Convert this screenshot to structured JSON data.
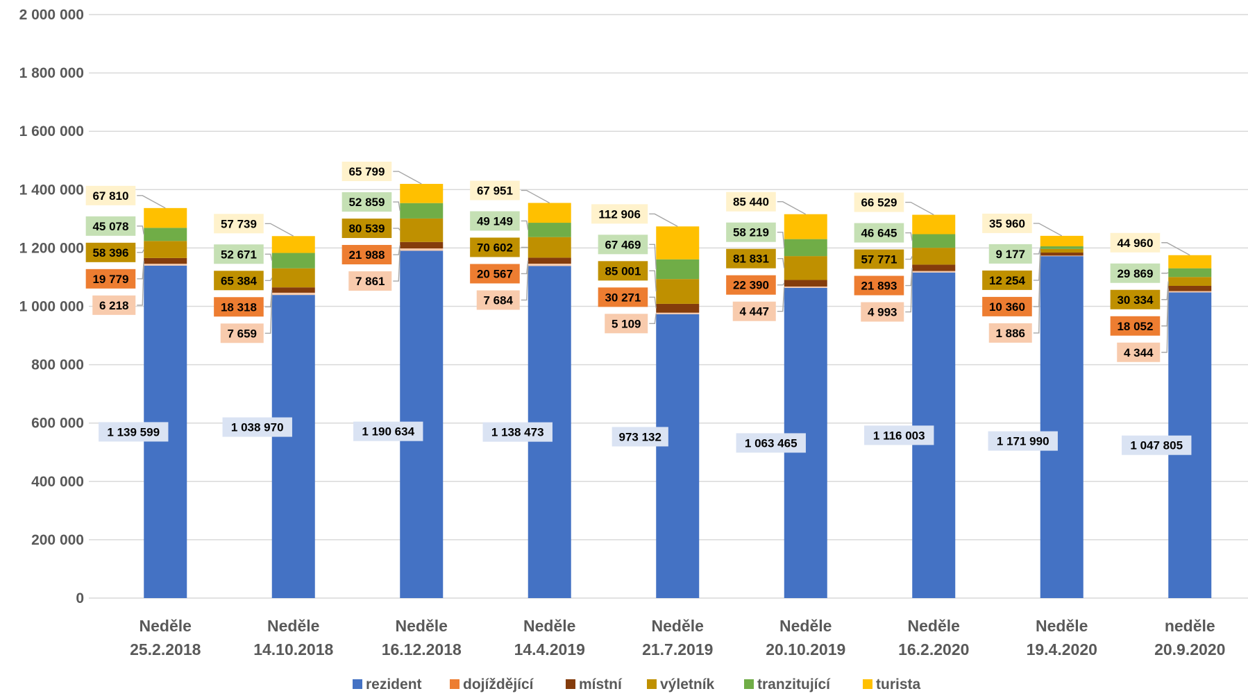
{
  "chart_data": {
    "type": "bar",
    "stacked": true,
    "title": "",
    "xlabel": "",
    "ylabel": "",
    "ylim": [
      0,
      2000000
    ],
    "yticks": [
      0,
      200000,
      400000,
      600000,
      800000,
      1000000,
      1200000,
      1400000,
      1600000,
      1800000,
      2000000
    ],
    "ytick_labels": [
      "0",
      "200 000",
      "400 000",
      "600 000",
      "800 000",
      "1 000 000",
      "1 200 000",
      "1 400 000",
      "1 600 000",
      "1 800 000",
      "2 000 000"
    ],
    "grid": true,
    "legend_position": "bottom",
    "categories": [
      [
        "Neděle",
        "25.2.2018"
      ],
      [
        "Neděle",
        "14.10.2018"
      ],
      [
        "Neděle",
        "16.12.2018"
      ],
      [
        "Neděle",
        "14.4.2019"
      ],
      [
        "Neděle",
        "21.7.2019"
      ],
      [
        "Neděle",
        "20.10.2019"
      ],
      [
        "Neděle",
        "16.2.2020"
      ],
      [
        "Neděle",
        "19.4.2020"
      ],
      [
        "neděle",
        "20.9.2020"
      ]
    ],
    "series": [
      {
        "name": "rezident",
        "color": "#4472C4",
        "label_bg": "#DAE3F3",
        "values": [
          1139599,
          1038970,
          1190634,
          1138473,
          973132,
          1063465,
          1116003,
          1171990,
          1047805
        ],
        "labels": [
          "1 139 599",
          "1 038 970",
          "1 190 634",
          "1 138 473",
          "973 132",
          "1 063 465",
          "1 116 003",
          "1 171 990",
          "1 047 805"
        ]
      },
      {
        "name": "dojíždějící",
        "color": "#F8CBAD",
        "label_bg": "#F8CBAD",
        "values": [
          6218,
          7659,
          7861,
          7684,
          5109,
          4447,
          4993,
          1886,
          4344
        ],
        "labels": [
          "6 218",
          "7 659",
          "7 861",
          "7 684",
          "5 109",
          "4 447",
          "4 993",
          "1 886",
          "4 344"
        ]
      },
      {
        "name": "místní",
        "color": "#843C0C",
        "label_bg": "#ED7D31",
        "values": [
          19779,
          18318,
          21988,
          20567,
          30271,
          22390,
          21893,
          10360,
          18052
        ],
        "labels": [
          "19 779",
          "18 318",
          "21 988",
          "20 567",
          "30 271",
          "22 390",
          "21 893",
          "10 360",
          "18 052"
        ]
      },
      {
        "name": "výletník",
        "color": "#BF9000",
        "label_bg": "#BF9000",
        "values": [
          58396,
          65384,
          80539,
          70602,
          85001,
          81831,
          57771,
          12254,
          30334
        ],
        "labels": [
          "58 396",
          "65 384",
          "80 539",
          "70 602",
          "85 001",
          "81 831",
          "57 771",
          "12 254",
          "30 334"
        ]
      },
      {
        "name": "tranzitující",
        "color": "#70AD47",
        "label_bg": "#C5E0B4",
        "values": [
          45078,
          52671,
          52859,
          49149,
          67469,
          58219,
          46645,
          9177,
          29869
        ],
        "labels": [
          "45 078",
          "52 671",
          "52 859",
          "49 149",
          "67 469",
          "58 219",
          "46 645",
          "9 177",
          "29 869"
        ]
      },
      {
        "name": "turista",
        "color": "#FFC000",
        "label_bg": "#FFF2CC",
        "values": [
          67810,
          57739,
          65799,
          67951,
          112906,
          85440,
          66529,
          35960,
          44960
        ],
        "labels": [
          "67 810",
          "57 739",
          "65 799",
          "67 951",
          "112 906",
          "85 440",
          "66 529",
          "35 960",
          "44 960"
        ]
      }
    ],
    "legend": [
      {
        "name": "rezident",
        "color": "#4472C4"
      },
      {
        "name": "dojíždějící",
        "color": "#ED7D31"
      },
      {
        "name": "místní",
        "color": "#843C0C"
      },
      {
        "name": "výletník",
        "color": "#BF9000"
      },
      {
        "name": "tranzitující",
        "color": "#70AD47"
      },
      {
        "name": "turista",
        "color": "#FFC000"
      }
    ]
  }
}
